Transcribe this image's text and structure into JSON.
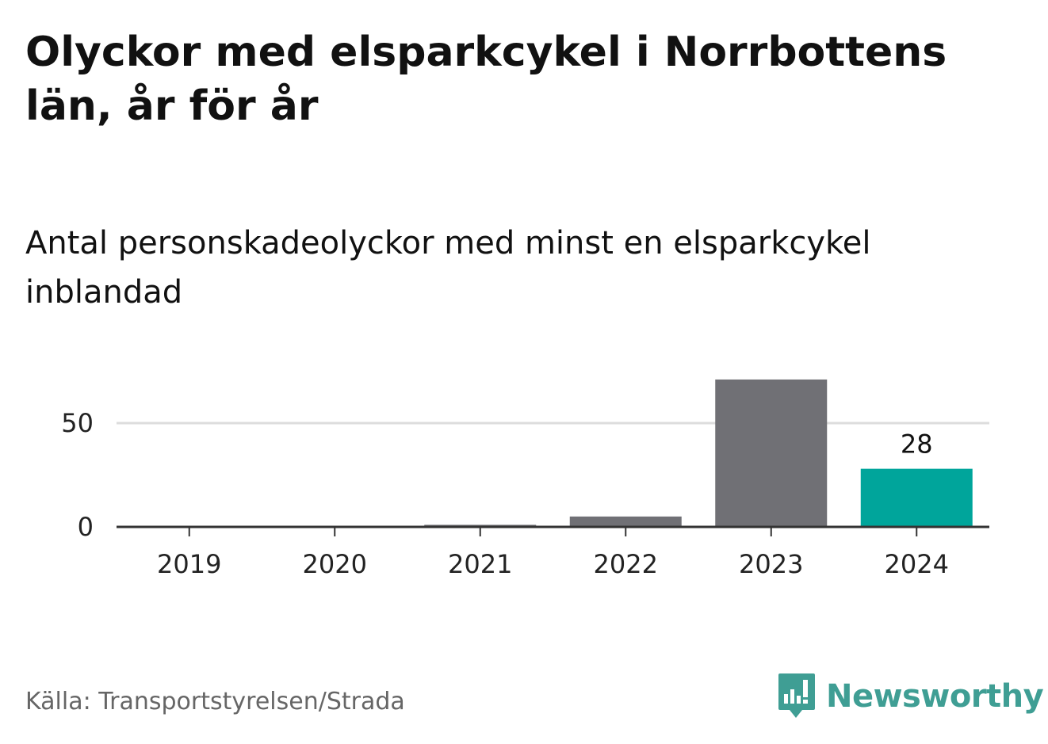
{
  "header": {
    "title": "Olyckor med elsparkcykel i Norrbottens län, år för år",
    "subtitle": "Antal personskadeolyckor med minst en elsparkcykel inblandad"
  },
  "footer": {
    "source": "Källa: Transportstyrelsen/Strada",
    "logo_text": "Newsworthy",
    "logo_icon": "newsworthy-bar-chart-icon"
  },
  "colors": {
    "bar_default": "#707075",
    "bar_highlight": "#00a59b",
    "grid": "#dddddd",
    "axis": "#333333",
    "logo": "#3f9e94"
  },
  "chart_data": {
    "type": "bar",
    "categories": [
      "2019",
      "2020",
      "2021",
      "2022",
      "2023",
      "2024"
    ],
    "values": [
      0,
      0,
      1,
      5,
      71,
      28
    ],
    "highlight_index": 5,
    "data_labels": [
      {
        "index": 5,
        "text": "28"
      }
    ],
    "ylim": [
      0,
      72
    ],
    "yticks": [
      0,
      50
    ],
    "grid": true,
    "xlabel": "",
    "ylabel": ""
  }
}
